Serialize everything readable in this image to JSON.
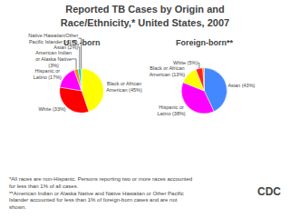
{
  "title": "Reported TB Cases by Origin and\nRace/Ethnicity,* United States, 2007",
  "chart_data": [
    {
      "type": "pie",
      "title": "U.S.-born",
      "categories": [
        "Black or African\nAmerican (45%)",
        "White (33%)",
        "Hispanic or\nLatino (17%)",
        "American Indian\nor Alaska Native\n(3%)",
        "Asian (2%)",
        "Native Hawaiian/Other\nPacific Islander (<1%)"
      ],
      "values": [
        45,
        33,
        17,
        3,
        2,
        0.5
      ],
      "colors": [
        "#FFFF00",
        "#FF0000",
        "#FF00FF",
        "#FF8C00",
        "#00CCCC",
        "#00CC00"
      ]
    },
    {
      "type": "pie",
      "title": "Foreign-born**",
      "categories": [
        "Asian (43%)",
        "Hispanic or\nLatino (38%)",
        "Black or African\nAmerican (13%)",
        "White (5%)",
        null
      ],
      "values": [
        43,
        38,
        13,
        5,
        1
      ],
      "colors": [
        "#4488FF",
        "#FF00FF",
        "#FFFF00",
        "#FF2222",
        "#FF8C00"
      ]
    }
  ],
  "annotations": [
    "*All races are non-Hispanic. Persons reporting two or more races accounted\nfor less than 1% of all cases.\n**American Indian or Alaska Native and Native Hawaiian or Other Pacific\nIslander accounted for less than 1% of foreign-born cases and are not\nshown.",
    "CDC"
  ]
}
